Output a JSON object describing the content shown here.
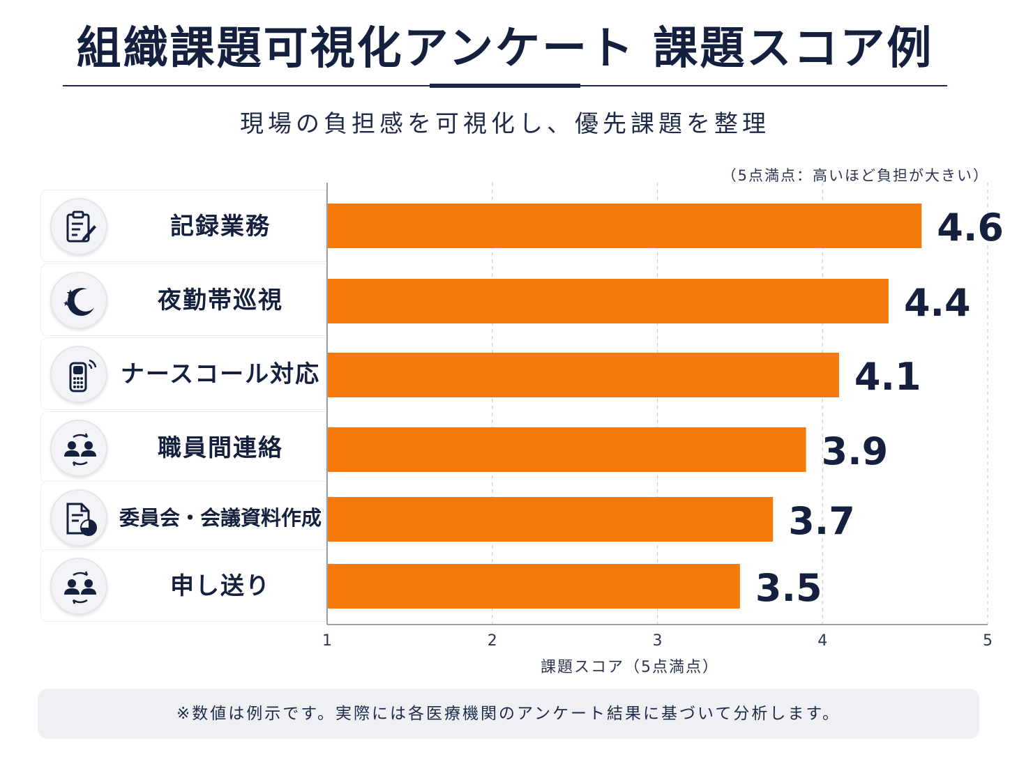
{
  "header": {
    "title": "組織課題可視化アンケート 課題スコア例",
    "subtitle": "現場の負担感を可視化し、優先課題を整理",
    "scale_note": "（5点満点：高いほど負担が大きい）"
  },
  "rows": [
    {
      "label": "記録業務",
      "icon": "clipboard-pen-icon"
    },
    {
      "label": "夜勤帯巡視",
      "icon": "moon-stars-icon"
    },
    {
      "label": "ナースコール対応",
      "icon": "nurse-call-phone-icon"
    },
    {
      "label": "職員間連絡",
      "icon": "people-exchange-icon"
    },
    {
      "label": "委員会・会議資料作成",
      "icon": "document-chart-icon"
    },
    {
      "label": "申し送り",
      "icon": "people-exchange-icon"
    }
  ],
  "chart_data": {
    "type": "bar",
    "orientation": "horizontal",
    "categories": [
      "記録業務",
      "夜勤帯巡視",
      "ナースコール対応",
      "職員間連絡",
      "委員会・会議資料作成",
      "申し送り"
    ],
    "values": [
      4.6,
      4.4,
      4.1,
      3.9,
      3.7,
      3.5
    ],
    "value_labels": [
      "4.6",
      "4.4",
      "4.1",
      "3.9",
      "3.7",
      "3.5"
    ],
    "xlabel": "課題スコア（5点満点）",
    "xlim": [
      1,
      5
    ],
    "xticks": [
      "1",
      "2",
      "3",
      "4",
      "5"
    ],
    "grid": "vertical-dashed",
    "bar_color": "#f57a0a",
    "label_color": "#15203f"
  },
  "footer": {
    "note": "※数値は例示です。実際には各医療機関のアンケート結果に基づいて分析します。"
  }
}
